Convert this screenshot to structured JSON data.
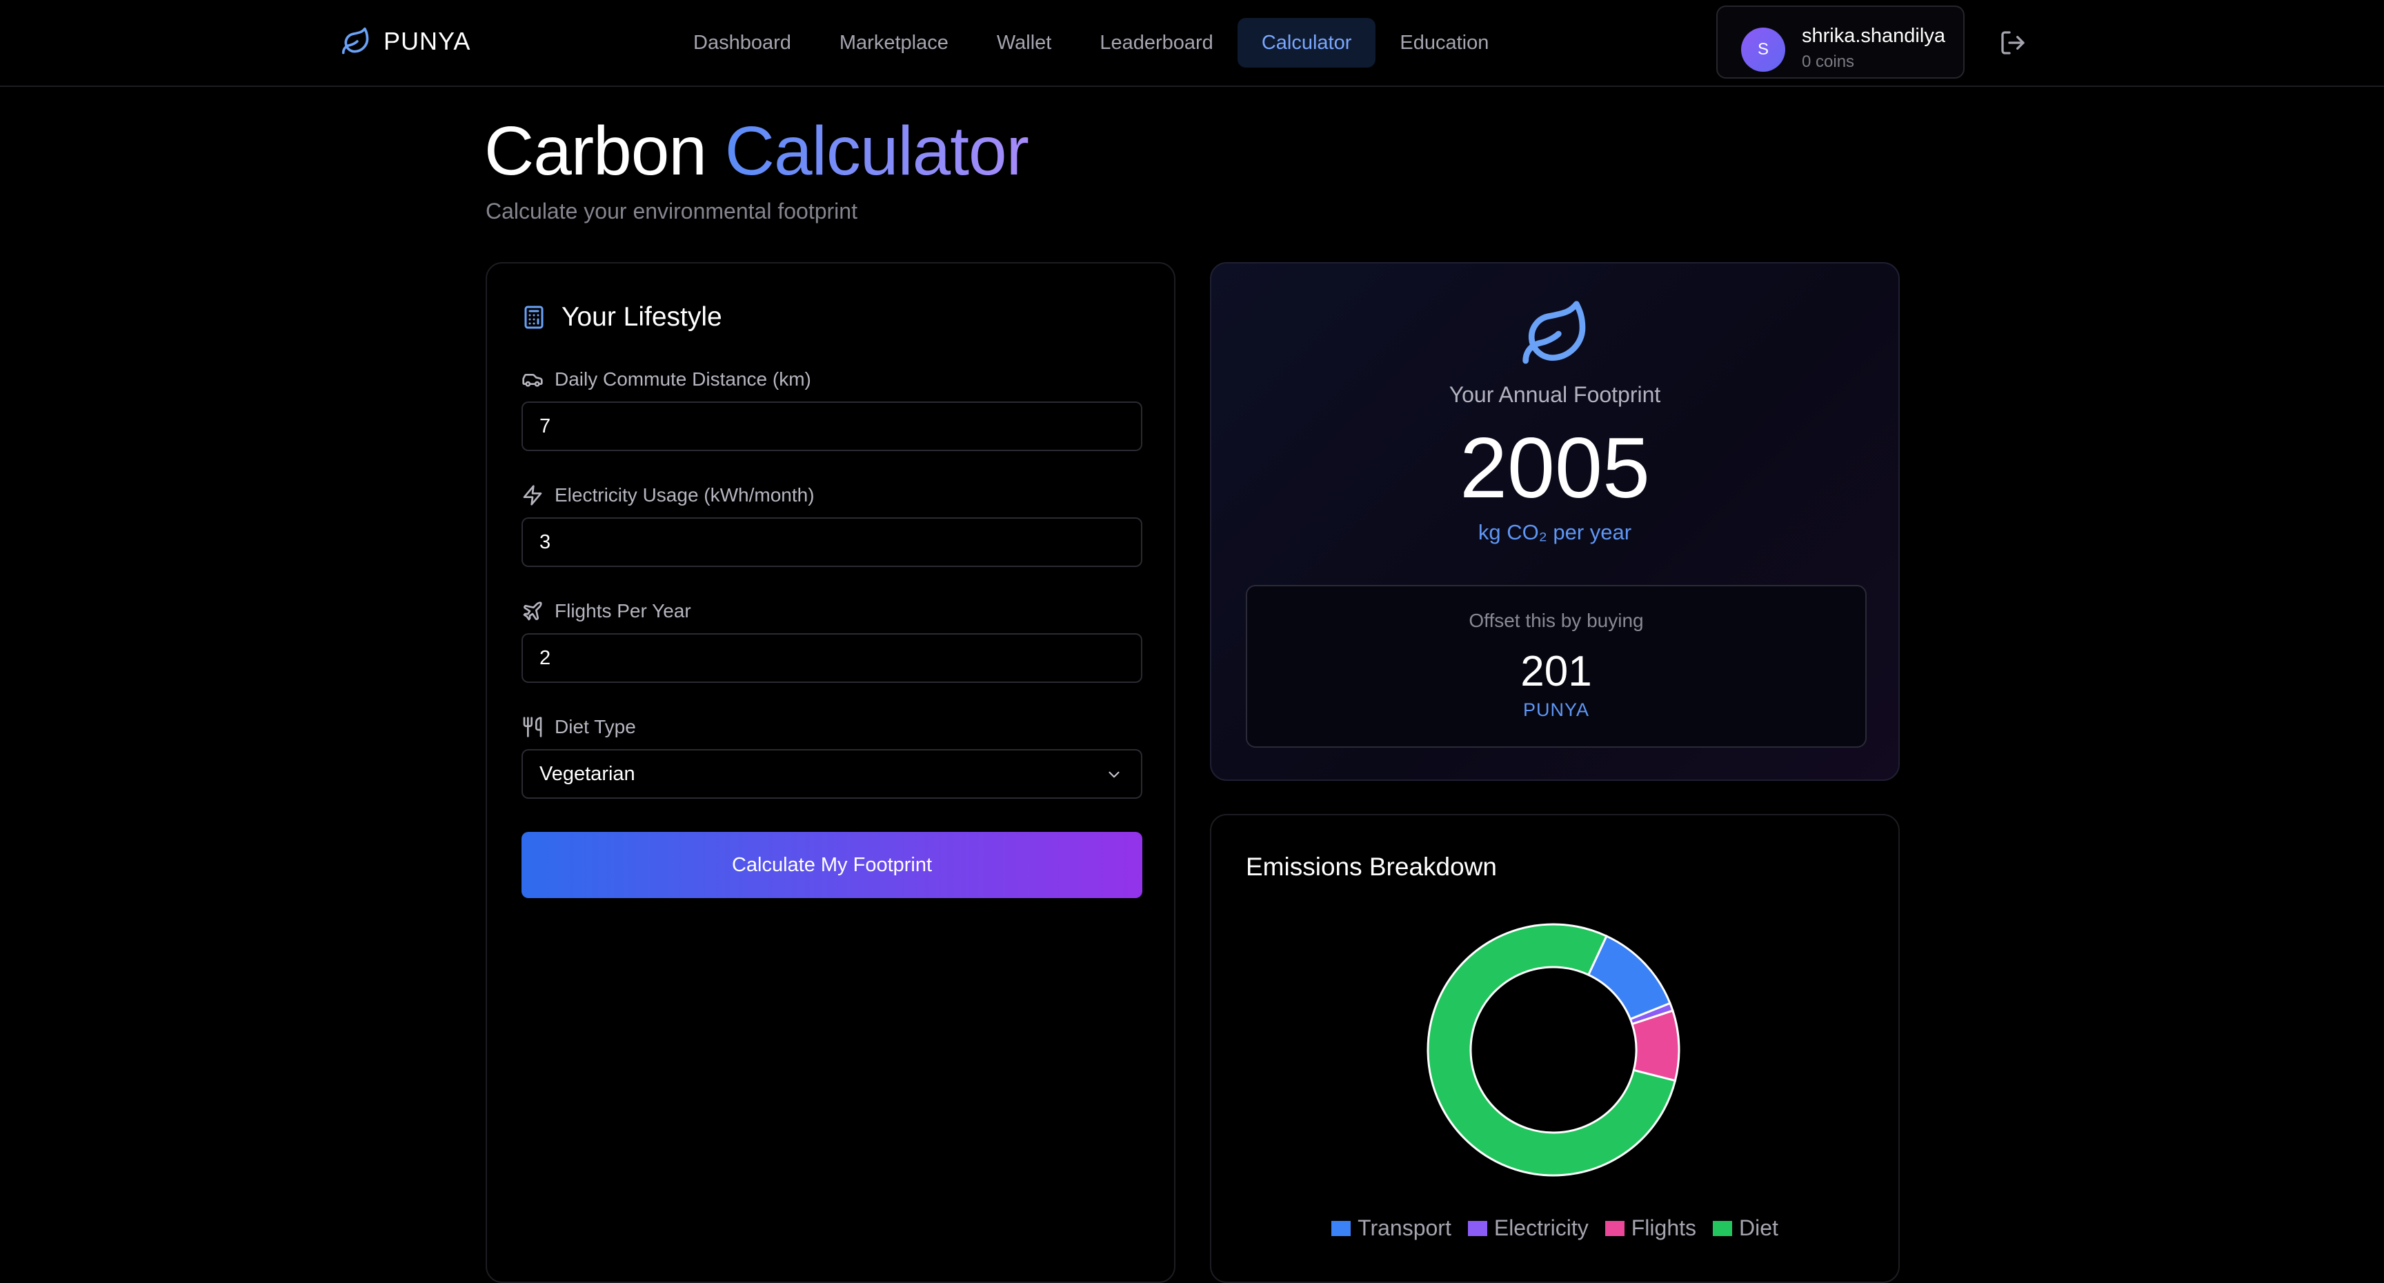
{
  "brand": {
    "name": "PUNYA"
  },
  "nav": {
    "links": [
      {
        "label": "Dashboard"
      },
      {
        "label": "Marketplace"
      },
      {
        "label": "Wallet"
      },
      {
        "label": "Leaderboard"
      },
      {
        "label": "Calculator",
        "active": true
      },
      {
        "label": "Education"
      }
    ]
  },
  "user": {
    "initial": "S",
    "name": "shrika.shandilya",
    "coins": "0 coins"
  },
  "header": {
    "title_part1": "Carbon",
    "title_part2": "Calculator",
    "subtitle": "Calculate your environmental footprint"
  },
  "lifestyle": {
    "title": "Your Lifestyle",
    "commute": {
      "label": "Daily Commute Distance (km)",
      "value": "7"
    },
    "electricity": {
      "label": "Electricity Usage (kWh/month)",
      "value": "3"
    },
    "flights": {
      "label": "Flights Per Year",
      "value": "2"
    },
    "diet": {
      "label": "Diet Type",
      "value": "Vegetarian"
    },
    "button": "Calculate My Footprint"
  },
  "footprint": {
    "label": "Your Annual Footprint",
    "value": "2005",
    "unit": "kg CO₂ per year",
    "offset_label": "Offset this by buying",
    "offset_value": "201",
    "offset_unit": "PUNYA"
  },
  "emissions": {
    "title": "Emissions Breakdown"
  },
  "chart_data": {
    "type": "pie",
    "donut": true,
    "categories": [
      "Transport",
      "Electricity",
      "Flights",
      "Diet"
    ],
    "values": [
      12,
      1,
      9,
      78
    ],
    "colors": [
      "#3b82f6",
      "#8b5cf6",
      "#ec4899",
      "#22c55e"
    ],
    "legend": "bottom"
  },
  "colors": {
    "accent": "#5f97f5",
    "nav_active_bg": "#0e1a30"
  }
}
